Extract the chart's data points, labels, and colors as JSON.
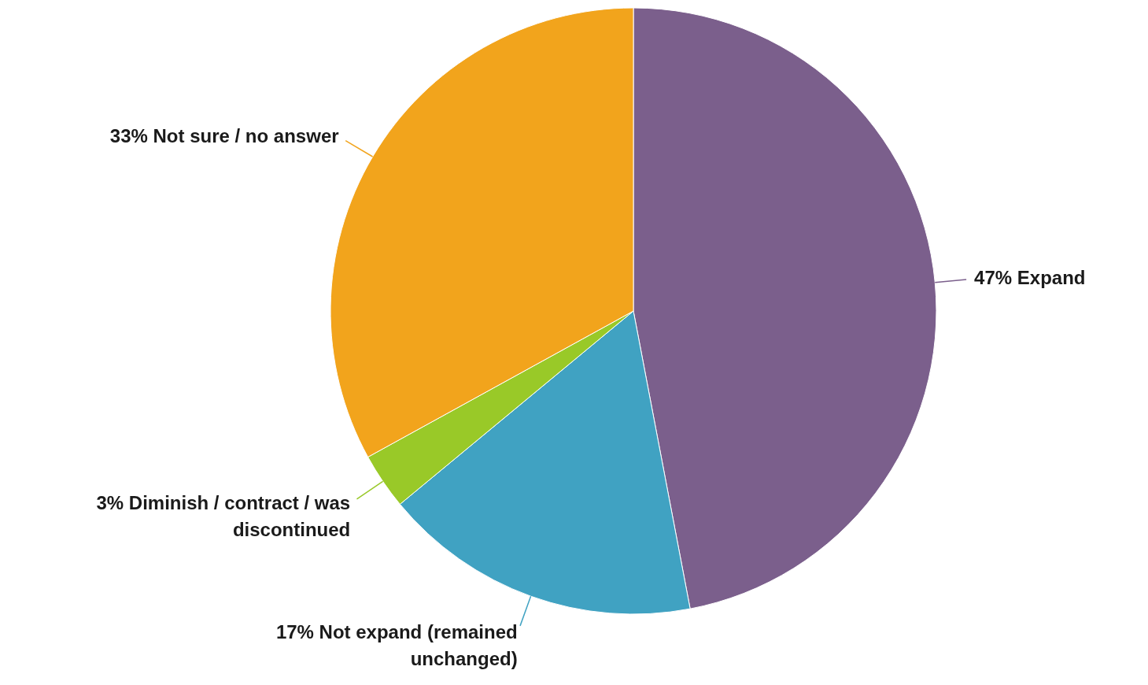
{
  "chart_data": {
    "type": "pie",
    "categories": [
      "Expand",
      "Not expand (remained unchanged)",
      "Diminish / contract / was discontinued",
      "Not sure / no answer"
    ],
    "values": [
      47,
      17,
      3,
      33
    ],
    "value_labels": [
      "47%",
      "17%",
      "3%",
      "33%"
    ],
    "colors": [
      "#7b5f8c",
      "#40a2c2",
      "#99c928",
      "#f2a41c"
    ]
  }
}
